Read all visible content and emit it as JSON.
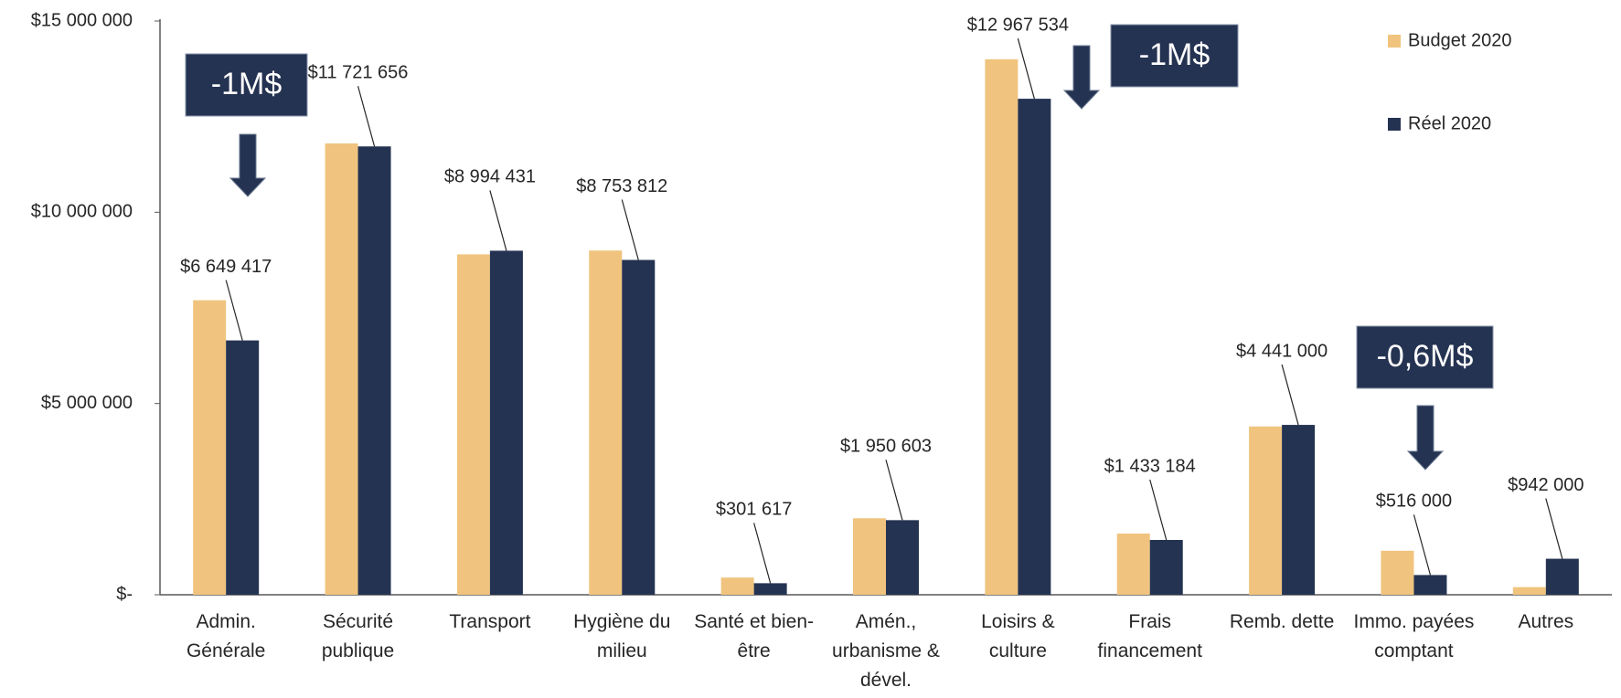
{
  "chart_data": {
    "type": "bar",
    "categories": [
      "Admin. Générale",
      "Sécurité publique",
      "Transport",
      "Hygiène du milieu",
      "Santé et bien-être",
      "Amén., urbanisme & dével.",
      "Loisirs & culture",
      "Frais financement",
      "Remb. dette",
      "Immo. payées comptant",
      "Autres"
    ],
    "series": [
      {
        "name": "Budget 2020",
        "color": "#f0c47e",
        "values": [
          7700000,
          11800000,
          8900000,
          9000000,
          450000,
          2000000,
          14000000,
          1600000,
          4400000,
          1150000,
          200000
        ]
      },
      {
        "name": "Réel 2020",
        "color": "#253352",
        "values": [
          6649417,
          11721656,
          8994431,
          8753812,
          301617,
          1950603,
          12967534,
          1433184,
          4441000,
          516000,
          942000
        ],
        "value_labels": [
          "$6 649 417",
          "$11 721 656",
          "$8 994 431",
          "$8 753 812",
          "$301 617",
          "$1 950 603",
          "$12 967 534",
          "$1 433 184",
          "$4 441 000",
          "$516 000",
          "$942 000"
        ]
      }
    ],
    "ylim": [
      0,
      15000000
    ],
    "yticks": [
      {
        "value": 0,
        "label": "$-"
      },
      {
        "value": 5000000,
        "label": "$5 000 000"
      },
      {
        "value": 10000000,
        "label": "$10 000 000"
      },
      {
        "value": 15000000,
        "label": "$15 000 000"
      }
    ],
    "legend": "top-right",
    "annotations": [
      "-1M$",
      "-1M$",
      "-0,6M$"
    ]
  }
}
